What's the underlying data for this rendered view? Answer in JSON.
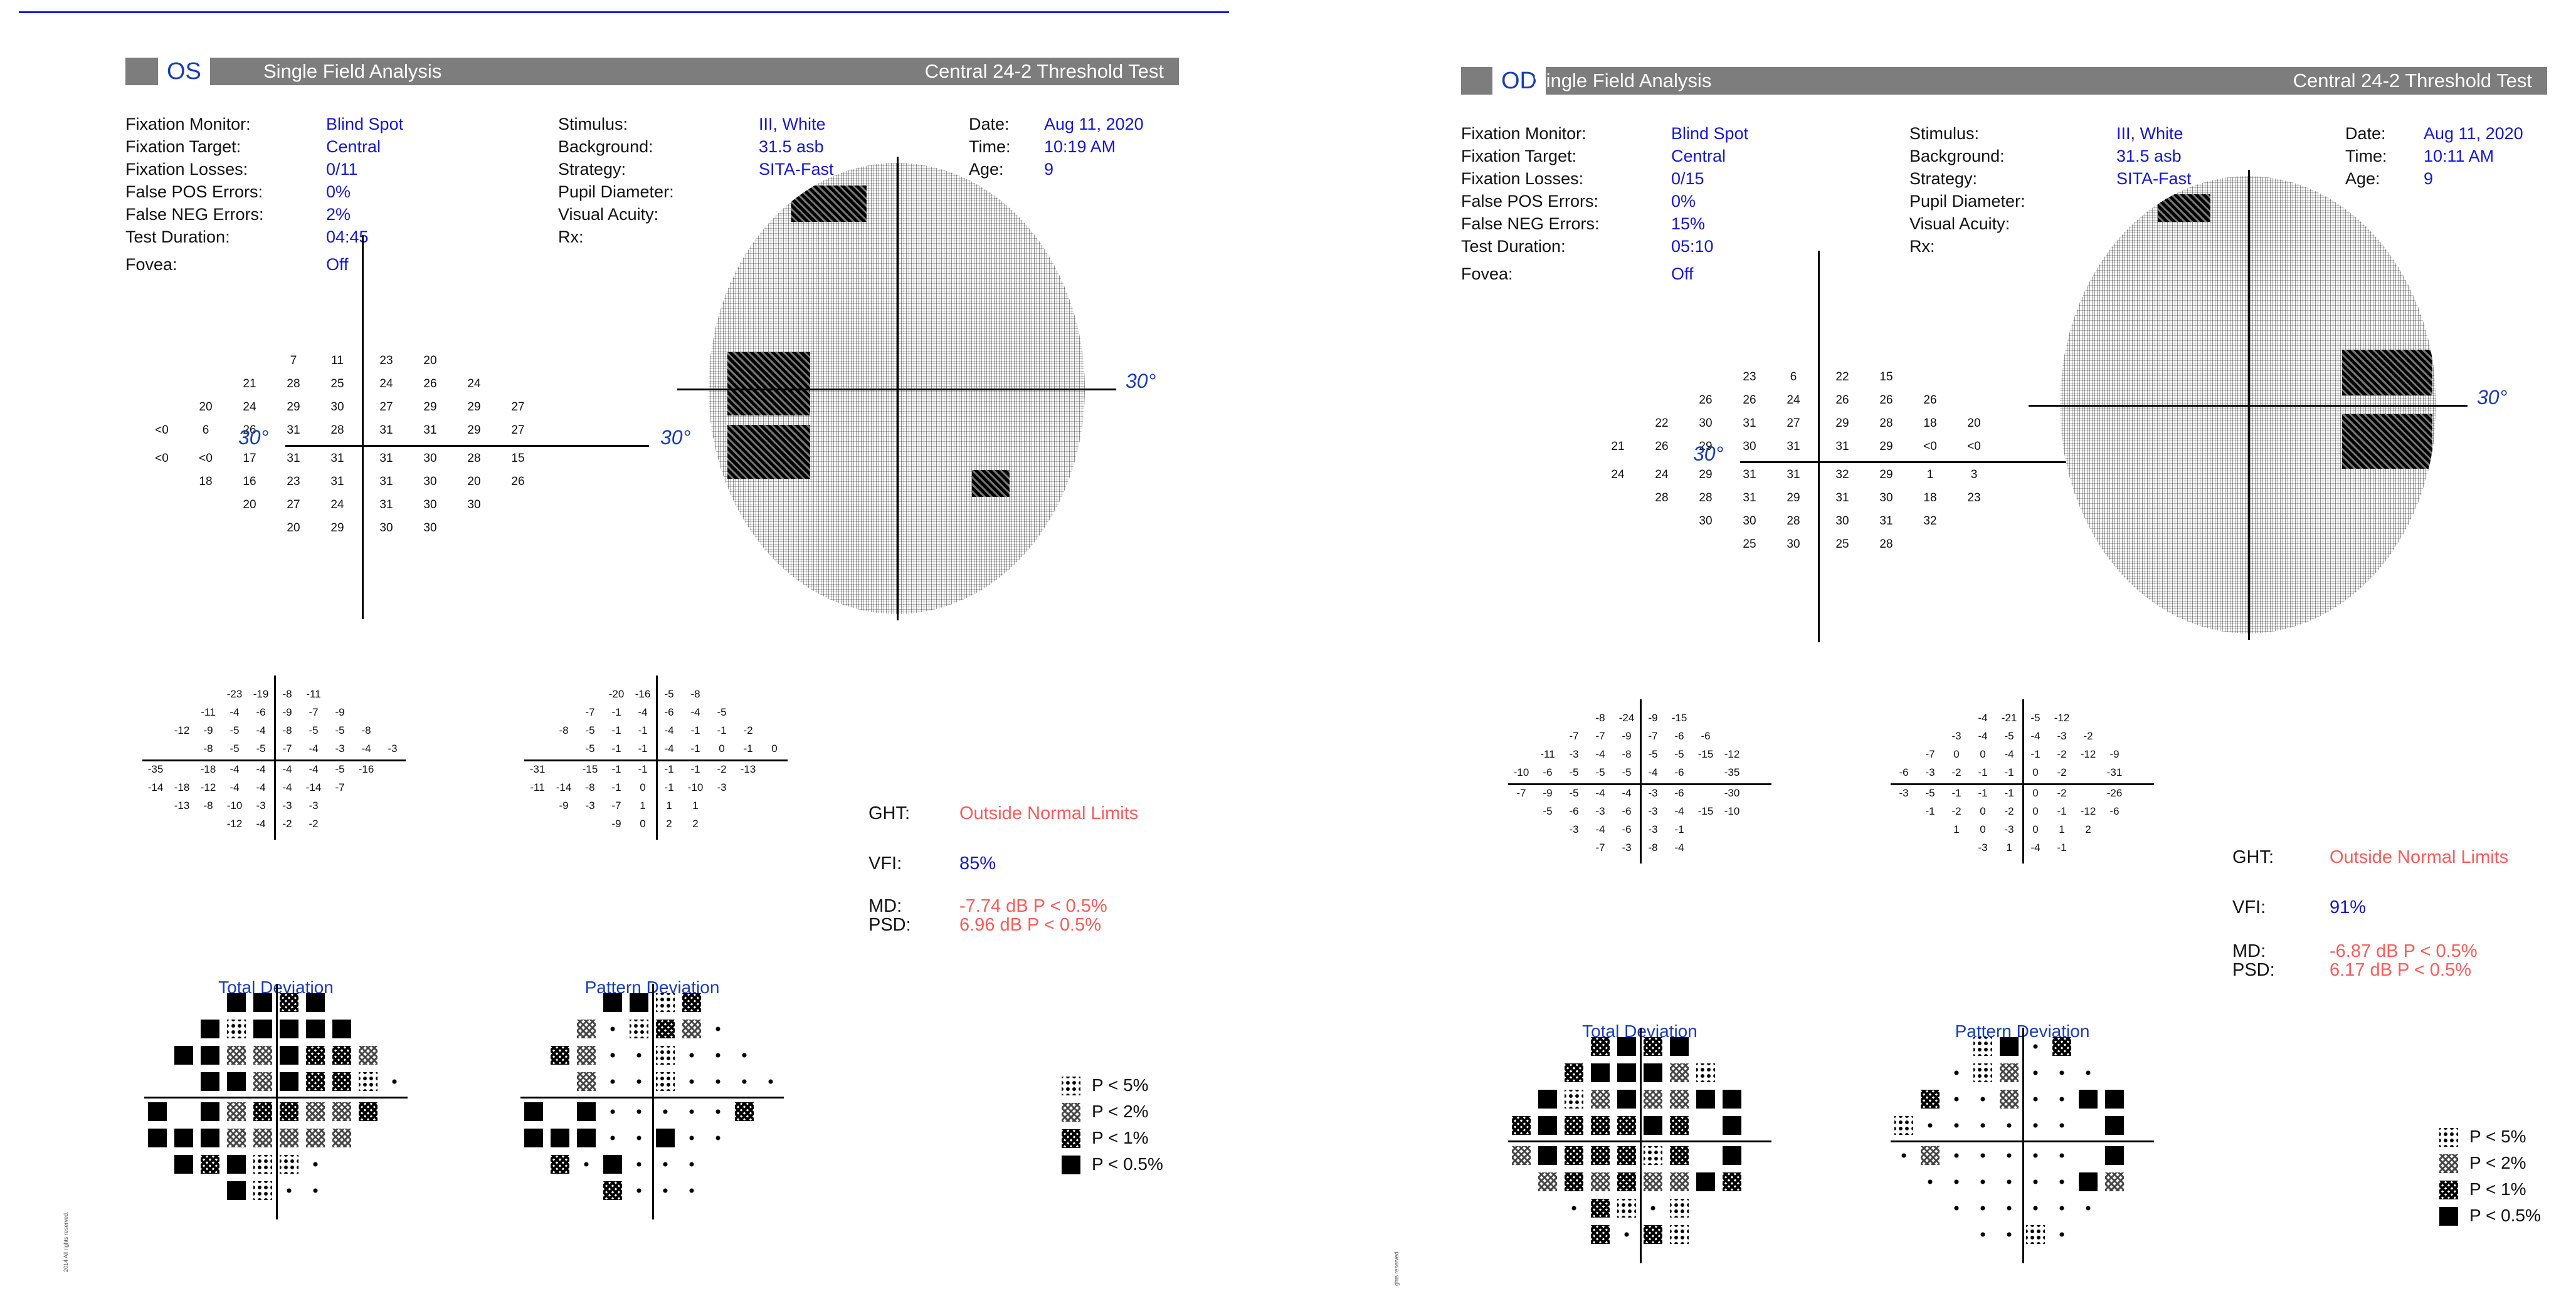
{
  "reports": [
    {
      "eye": "OS",
      "title": "Single Field Analysis",
      "test": "Central 24-2 Threshold Test",
      "info": {
        "col1": [
          {
            "label": "Fixation Monitor:",
            "value": "Blind Spot"
          },
          {
            "label": "Fixation Target:",
            "value": "Central"
          },
          {
            "label": "Fixation Losses:",
            "value": "0/11"
          },
          {
            "label": "False POS Errors:",
            "value": "0%"
          },
          {
            "label": "False NEG Errors:",
            "value": "2%"
          },
          {
            "label": "Test Duration:",
            "value": "04:45"
          },
          {
            "label": "Fovea:",
            "value": "Off"
          }
        ],
        "col2": [
          {
            "label": "Stimulus:",
            "value": "III, White"
          },
          {
            "label": "Background:",
            "value": "31.5 asb"
          },
          {
            "label": "Strategy:",
            "value": "SITA-Fast"
          },
          {
            "label": "Pupil Diameter:",
            "value": ""
          },
          {
            "label": "Visual Acuity:",
            "value": ""
          },
          {
            "label": "Rx:",
            "value": ""
          }
        ],
        "col3": [
          {
            "label": "Date:",
            "value": "Aug 11, 2020"
          },
          {
            "label": "Time:",
            "value": "10:19 AM"
          },
          {
            "label": "Age:",
            "value": "9"
          }
        ]
      },
      "degree_label": "30°",
      "threshold": [
        [
          "",
          "",
          "",
          "7",
          "11",
          "23",
          "20",
          "",
          "",
          ""
        ],
        [
          "",
          "",
          "21",
          "28",
          "25",
          "24",
          "26",
          "24",
          "",
          ""
        ],
        [
          "",
          "20",
          "24",
          "29",
          "30",
          "27",
          "29",
          "29",
          "27",
          ""
        ],
        [
          "<0",
          "6",
          "26",
          "31",
          "28",
          "31",
          "31",
          "29",
          "27",
          ""
        ],
        [
          "<0",
          "<0",
          "17",
          "31",
          "31",
          "31",
          "30",
          "28",
          "15",
          ""
        ],
        [
          "",
          "18",
          "16",
          "23",
          "31",
          "31",
          "30",
          "20",
          "26",
          ""
        ],
        [
          "",
          "",
          "20",
          "27",
          "24",
          "31",
          "30",
          "30",
          "",
          ""
        ],
        [
          "",
          "",
          "",
          "20",
          "29",
          "30",
          "30",
          "",
          "",
          ""
        ]
      ],
      "total_dev": [
        [
          "",
          "",
          "",
          "-23",
          "-19",
          "-8",
          "-11",
          "",
          "",
          ""
        ],
        [
          "",
          "",
          "-11",
          "-4",
          "-6",
          "-9",
          "-7",
          "-9",
          "",
          ""
        ],
        [
          "",
          "-12",
          "-9",
          "-5",
          "-4",
          "-8",
          "-5",
          "-5",
          "-8",
          ""
        ],
        [
          "",
          "",
          "-8",
          "-5",
          "-5",
          "-7",
          "-4",
          "-3",
          "-4",
          "-3"
        ],
        [
          "-35",
          "",
          "-18",
          "-4",
          "-4",
          "-4",
          "-4",
          "-5",
          "-16",
          ""
        ],
        [
          "-14",
          "-18",
          "-12",
          "-4",
          "-4",
          "-4",
          "-14",
          "-7",
          "",
          ""
        ],
        [
          "",
          "-13",
          "-8",
          "-10",
          "-3",
          "-3",
          "-3",
          "",
          "",
          ""
        ],
        [
          "",
          "",
          "",
          "-12",
          "-4",
          "-2",
          "-2",
          "",
          "",
          ""
        ]
      ],
      "pattern_dev": [
        [
          "",
          "",
          "",
          "-20",
          "-16",
          "-5",
          "-8",
          "",
          "",
          ""
        ],
        [
          "",
          "",
          "-7",
          "-1",
          "-4",
          "-6",
          "-4",
          "-5",
          "",
          ""
        ],
        [
          "",
          "-8",
          "-5",
          "-1",
          "-1",
          "-4",
          "-1",
          "-1",
          "-2",
          ""
        ],
        [
          "",
          "",
          "-5",
          "-1",
          "-1",
          "-4",
          "-1",
          "0",
          "-1",
          "0"
        ],
        [
          "-31",
          "",
          "-15",
          "-1",
          "-1",
          "-1",
          "-1",
          "-2",
          "-13",
          ""
        ],
        [
          "-11",
          "-14",
          "-8",
          "-1",
          "0",
          "-1",
          "-10",
          "-3",
          "",
          ""
        ],
        [
          "",
          "-9",
          "-3",
          "-7",
          "1",
          "1",
          "1",
          "",
          "",
          ""
        ],
        [
          "",
          "",
          "",
          "-9",
          "0",
          "2",
          "2",
          "",
          "",
          ""
        ]
      ],
      "ght_label": "GHT:",
      "ght_value": "Outside Normal Limits",
      "vfi_label": "VFI:",
      "vfi_value": "85%",
      "md_label": "MD:",
      "md_value": "-7.74 dB P < 0.5%",
      "psd_label": "PSD:",
      "psd_value": "6.96 dB P < 0.5%",
      "total_dev_title": "Total Deviation",
      "pattern_dev_title": "Pattern Deviation",
      "total_prob": [
        [
          "",
          "",
          "",
          "B",
          "B",
          "D",
          "B",
          "",
          "",
          ""
        ],
        [
          "",
          "",
          "B",
          ":",
          "B",
          "B",
          "B",
          "B",
          "",
          ""
        ],
        [
          "",
          "B",
          "B",
          "C",
          "C",
          "B",
          "D",
          "D",
          "C",
          ""
        ],
        [
          "",
          "",
          "B",
          "B",
          "C",
          "B",
          "D",
          "D",
          ":",
          "."
        ],
        [
          "B",
          "",
          "B",
          "C",
          "D",
          "D",
          "C",
          "C",
          "D",
          ""
        ],
        [
          "B",
          "B",
          "B",
          "C",
          "C",
          "C",
          "C",
          "C",
          "",
          ""
        ],
        [
          "",
          "B",
          "D",
          "B",
          ":",
          ":",
          ".",
          "",
          "",
          ""
        ],
        [
          "",
          "",
          "",
          "B",
          ":",
          ".",
          ".",
          "",
          "",
          ""
        ]
      ],
      "pattern_prob": [
        [
          "",
          "",
          "",
          "B",
          "B",
          ":",
          "D",
          "",
          "",
          ""
        ],
        [
          "",
          "",
          "C",
          ".",
          ":",
          "D",
          "C",
          ".",
          "",
          ""
        ],
        [
          "",
          "D",
          "C",
          ".",
          ".",
          ":",
          ".",
          ".",
          ".",
          ""
        ],
        [
          "",
          "",
          "C",
          ".",
          ".",
          ":",
          ".",
          ".",
          ".",
          "."
        ],
        [
          "B",
          "",
          "B",
          ".",
          ".",
          ".",
          ".",
          ".",
          "D",
          ""
        ],
        [
          "B",
          "B",
          "B",
          ".",
          ".",
          "B",
          ".",
          ".",
          "",
          ""
        ],
        [
          "",
          "D",
          ".",
          "B",
          ".",
          ".",
          ".",
          "",
          "",
          ""
        ],
        [
          "",
          "",
          "",
          "D",
          ".",
          ".",
          ".",
          "",
          "",
          ""
        ]
      ]
    },
    {
      "eye": "OD",
      "title": "Single Field Analysis",
      "test": "Central 24-2 Threshold Test",
      "info": {
        "col1": [
          {
            "label": "Fixation Monitor:",
            "value": "Blind Spot"
          },
          {
            "label": "Fixation Target:",
            "value": "Central"
          },
          {
            "label": "Fixation Losses:",
            "value": "0/15"
          },
          {
            "label": "False POS Errors:",
            "value": "0%"
          },
          {
            "label": "False NEG Errors:",
            "value": "15%"
          },
          {
            "label": "Test Duration:",
            "value": "05:10"
          },
          {
            "label": "Fovea:",
            "value": "Off"
          }
        ],
        "col2": [
          {
            "label": "Stimulus:",
            "value": "III, White"
          },
          {
            "label": "Background:",
            "value": "31.5 asb"
          },
          {
            "label": "Strategy:",
            "value": "SITA-Fast"
          },
          {
            "label": "Pupil Diameter:",
            "value": ""
          },
          {
            "label": "Visual Acuity:",
            "value": ""
          },
          {
            "label": "Rx:",
            "value": ""
          }
        ],
        "col3": [
          {
            "label": "Date:",
            "value": "Aug 11, 2020"
          },
          {
            "label": "Time:",
            "value": "10:11 AM"
          },
          {
            "label": "Age:",
            "value": "9"
          }
        ]
      },
      "degree_label": "30°",
      "threshold": [
        [
          "",
          "",
          "",
          "23",
          "6",
          "22",
          "15",
          "",
          "",
          ""
        ],
        [
          "",
          "",
          "26",
          "26",
          "24",
          "26",
          "26",
          "26",
          "",
          ""
        ],
        [
          "",
          "22",
          "30",
          "31",
          "27",
          "29",
          "28",
          "18",
          "20",
          ""
        ],
        [
          "21",
          "26",
          "29",
          "30",
          "31",
          "31",
          "29",
          "<0",
          "<0",
          ""
        ],
        [
          "24",
          "24",
          "29",
          "31",
          "31",
          "32",
          "29",
          "1",
          "3",
          ""
        ],
        [
          "",
          "28",
          "28",
          "31",
          "29",
          "31",
          "30",
          "18",
          "23",
          ""
        ],
        [
          "",
          "",
          "30",
          "30",
          "28",
          "30",
          "31",
          "32",
          "",
          ""
        ],
        [
          "",
          "",
          "",
          "25",
          "30",
          "25",
          "28",
          "",
          "",
          ""
        ]
      ],
      "total_dev": [
        [
          "",
          "",
          "",
          "-8",
          "-24",
          "-9",
          "-15",
          "",
          "",
          ""
        ],
        [
          "",
          "",
          "-7",
          "-7",
          "-9",
          "-7",
          "-6",
          "-6",
          "",
          ""
        ],
        [
          "",
          "-11",
          "-3",
          "-4",
          "-8",
          "-5",
          "-5",
          "-15",
          "-12",
          ""
        ],
        [
          "-10",
          "-6",
          "-5",
          "-5",
          "-5",
          "-4",
          "-6",
          "",
          "-35",
          ""
        ],
        [
          "-7",
          "-9",
          "-5",
          "-4",
          "-4",
          "-3",
          "-6",
          "",
          "-30",
          ""
        ],
        [
          "",
          "-5",
          "-6",
          "-3",
          "-6",
          "-3",
          "-4",
          "-15",
          "-10",
          ""
        ],
        [
          "",
          "",
          "-3",
          "-4",
          "-6",
          "-3",
          "-1",
          "",
          "",
          ""
        ],
        [
          "",
          "",
          "",
          "-7",
          "-3",
          "-8",
          "-4",
          "",
          "",
          ""
        ]
      ],
      "pattern_dev": [
        [
          "",
          "",
          "",
          "-4",
          "-21",
          "-5",
          "-12",
          "",
          "",
          ""
        ],
        [
          "",
          "",
          "-3",
          "-4",
          "-5",
          "-4",
          "-3",
          "-2",
          "",
          ""
        ],
        [
          "",
          "-7",
          "0",
          "0",
          "-4",
          "-1",
          "-2",
          "-12",
          "-9",
          ""
        ],
        [
          "-6",
          "-3",
          "-2",
          "-1",
          "-1",
          "0",
          "-2",
          "",
          "-31",
          ""
        ],
        [
          "-3",
          "-5",
          "-1",
          "-1",
          "-1",
          "0",
          "-2",
          "",
          "-26",
          ""
        ],
        [
          "",
          "-1",
          "-2",
          "0",
          "-2",
          "0",
          "-1",
          "-12",
          "-6",
          ""
        ],
        [
          "",
          "",
          "1",
          "0",
          "-3",
          "0",
          "1",
          "2",
          "",
          ""
        ],
        [
          "",
          "",
          "",
          "-3",
          "1",
          "-4",
          "-1",
          "",
          "",
          ""
        ]
      ],
      "ght_label": "GHT:",
      "ght_value": "Outside Normal Limits",
      "vfi_label": "VFI:",
      "vfi_value": "91%",
      "md_label": "MD:",
      "md_value": "-6.87 dB P < 0.5%",
      "psd_label": "PSD:",
      "psd_value": "6.17 dB P < 0.5%",
      "total_dev_title": "Total Deviation",
      "pattern_dev_title": "Pattern Deviation",
      "total_prob": [
        [
          "",
          "",
          "",
          "D",
          "B",
          "D",
          "B",
          "",
          "",
          ""
        ],
        [
          "",
          "",
          "D",
          "B",
          "B",
          "B",
          "C",
          ":",
          "",
          ""
        ],
        [
          "",
          "B",
          ":",
          "C",
          "B",
          "C",
          "C",
          "B",
          "B",
          ""
        ],
        [
          "D",
          "B",
          "D",
          "D",
          "D",
          "B",
          "D",
          "",
          "B",
          ""
        ],
        [
          "C",
          "B",
          "D",
          "D",
          "D",
          ":",
          "D",
          "",
          "B",
          ""
        ],
        [
          "",
          "C",
          "D",
          "C",
          "D",
          "C",
          "C",
          "B",
          "D",
          ""
        ],
        [
          "",
          "",
          ".",
          "D",
          ":",
          ".",
          ":",
          "",
          "",
          ""
        ],
        [
          "",
          "",
          "",
          "D",
          ".",
          "D",
          ":",
          "",
          "",
          ""
        ]
      ],
      "pattern_prob": [
        [
          "",
          "",
          "",
          ":",
          "B",
          ".",
          "D",
          "",
          "",
          ""
        ],
        [
          "",
          "",
          ".",
          ":",
          "C",
          ".",
          ".",
          ".",
          "",
          ""
        ],
        [
          "",
          "D",
          ".",
          ".",
          "C",
          ".",
          ".",
          "B",
          "B",
          ""
        ],
        [
          ":",
          ".",
          ".",
          ".",
          ".",
          ".",
          ".",
          "",
          "B",
          ""
        ],
        [
          ".",
          "C",
          ".",
          ".",
          ".",
          ".",
          ".",
          "",
          "B",
          ""
        ],
        [
          "",
          ".",
          ".",
          ".",
          ".",
          ".",
          ".",
          "B",
          "C",
          ""
        ],
        [
          "",
          "",
          ".",
          ".",
          ".",
          ".",
          ".",
          ".",
          "",
          ""
        ],
        [
          "",
          "",
          "",
          ".",
          ".",
          ":",
          ".",
          "",
          "",
          ""
        ]
      ]
    }
  ],
  "legend": [
    {
      "sym": ":",
      "label": "P < 5%"
    },
    {
      "sym": "C",
      "label": "P < 2%"
    },
    {
      "sym": "D",
      "label": "P < 1%"
    },
    {
      "sym": "B",
      "label": "P < 0.5%"
    }
  ],
  "margin_text": [
    "2014 All rights reserved.",
    "ghts reserved."
  ]
}
